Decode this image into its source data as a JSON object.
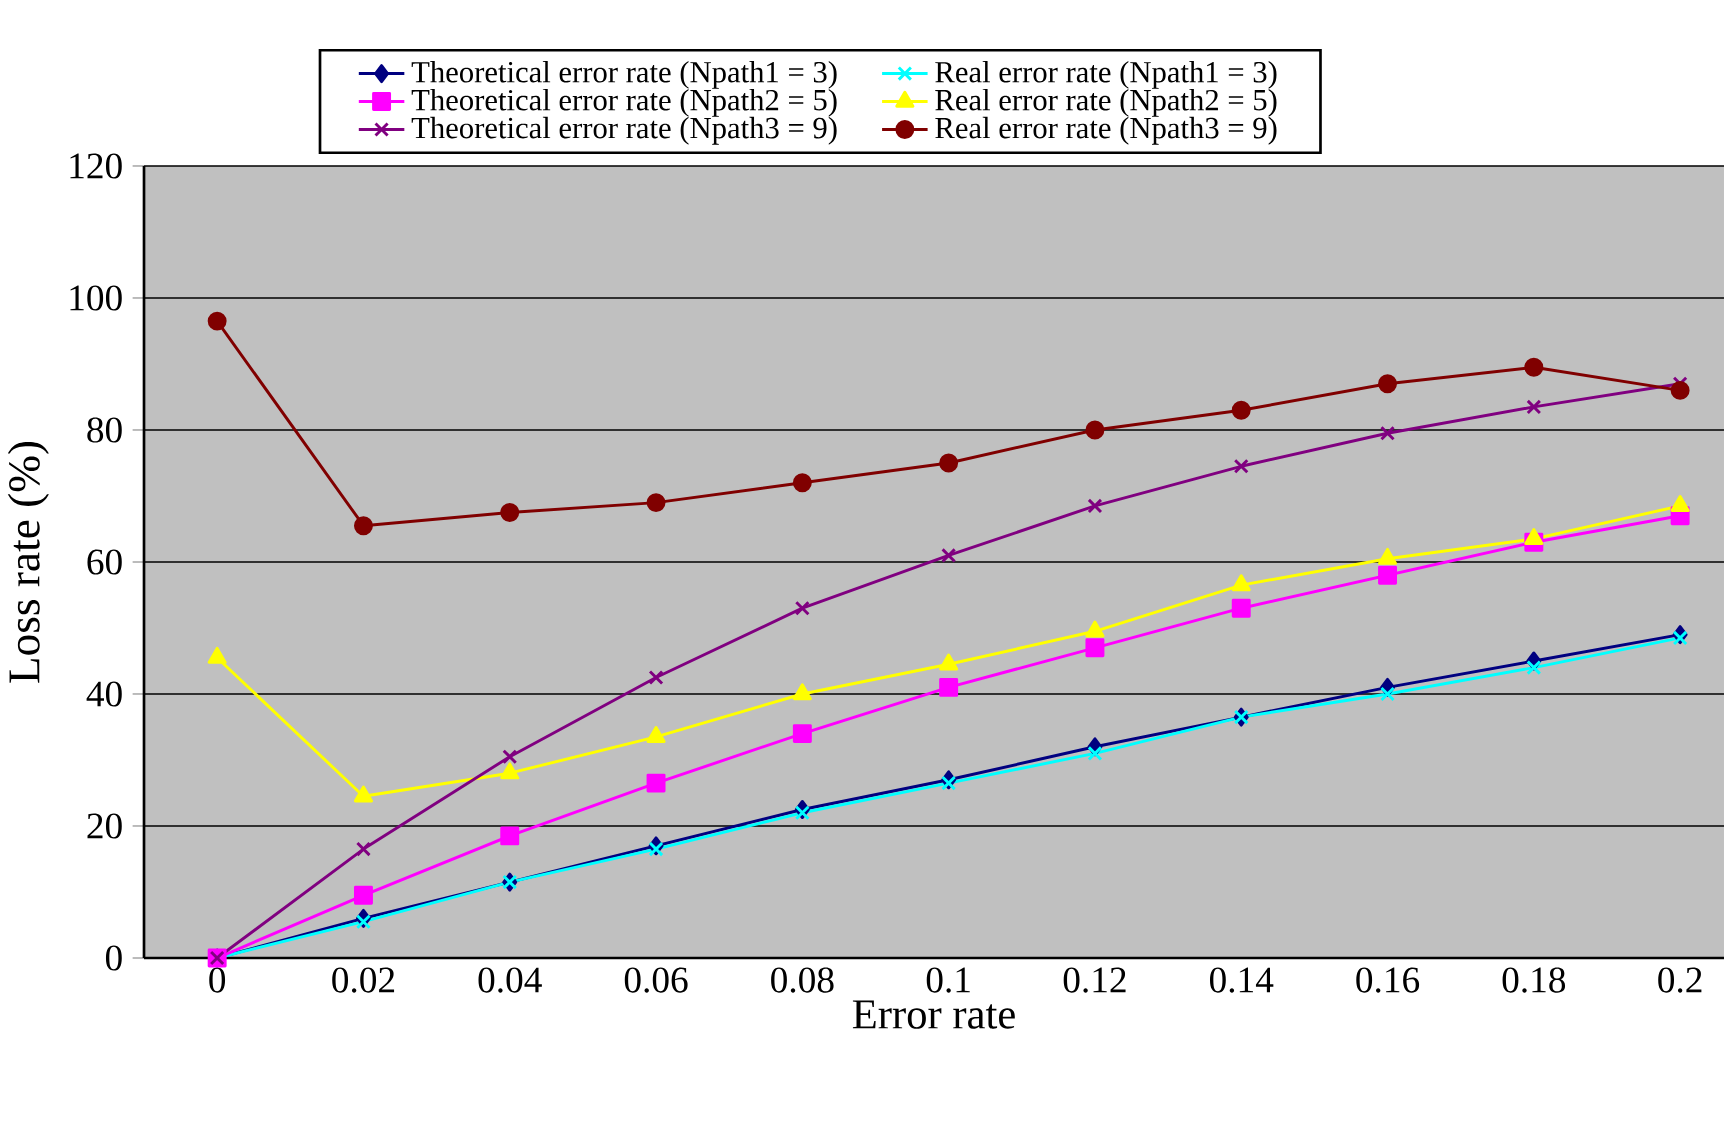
{
  "chart_data": {
    "type": "line",
    "xlabel": "Error rate",
    "ylabel": "Loss rate (%)",
    "categories": [
      "0",
      "0.02",
      "0.04",
      "0.06",
      "0.08",
      "0.1",
      "0.12",
      "0.14",
      "0.16",
      "0.18",
      "0.2"
    ],
    "ylim": [
      0,
      120
    ],
    "yticks": [
      0,
      20,
      40,
      60,
      80,
      100,
      120
    ],
    "grid": "y",
    "legend": "top",
    "line_style": "solid",
    "series": [
      {
        "name": "Theoretical error rate (Npath1 = 3)",
        "color": "#000080",
        "marker": "diamond",
        "values": [
          0,
          6,
          11.5,
          17,
          22.5,
          27,
          32,
          36.5,
          41,
          45,
          49
        ]
      },
      {
        "name": "Real error rate (Npath1 = 3)",
        "color": "#00ffff",
        "marker": "cross",
        "values": [
          0,
          5.5,
          11.5,
          16.5,
          22,
          26.5,
          31,
          36.5,
          40,
          44,
          48.5
        ]
      },
      {
        "name": "Theoretical error rate (Npath2 = 5)",
        "color": "#ff00ff",
        "marker": "square",
        "values": [
          0,
          9.5,
          18.5,
          26.5,
          34,
          41,
          47,
          53,
          58,
          63,
          67
        ]
      },
      {
        "name": "Real error rate (Npath2 = 5)",
        "color": "#ffff00",
        "marker": "triangle",
        "values": [
          45.5,
          24.5,
          28,
          33.5,
          40,
          44.5,
          49.5,
          56.5,
          60.5,
          63.5,
          68.5
        ]
      },
      {
        "name": "Theoretical error rate (Npath3 = 9)",
        "color": "#800080",
        "marker": "cross",
        "values": [
          0,
          16.5,
          30.5,
          42.5,
          53,
          61,
          68.5,
          74.5,
          79.5,
          83.5,
          87
        ]
      },
      {
        "name": "Real error rate (Npath3 = 9)",
        "color": "#800000",
        "marker": "circle",
        "values": [
          96.5,
          65.5,
          67.5,
          69,
          72,
          75,
          80,
          83,
          87,
          89.5,
          86
        ]
      }
    ]
  }
}
